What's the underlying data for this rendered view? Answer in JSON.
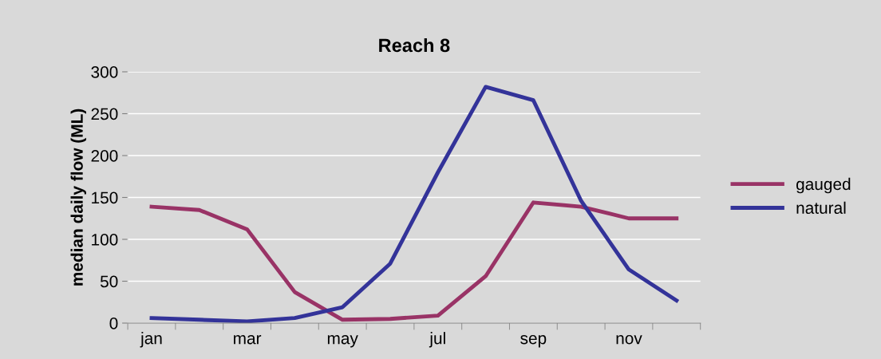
{
  "chart_data": {
    "type": "line",
    "title": "Reach 8",
    "ylabel": "median daily flow (ML)",
    "categories": [
      "jan",
      null,
      "mar",
      null,
      "may",
      null,
      "jul",
      null,
      "sep",
      null,
      "nov",
      null
    ],
    "series": [
      {
        "name": "gauged",
        "color": "#993366",
        "values": [
          139,
          135,
          112,
          37,
          4,
          5,
          9,
          56,
          144,
          139,
          125,
          125
        ]
      },
      {
        "name": "natural",
        "color": "#333399",
        "values": [
          6,
          4,
          2,
          6,
          19,
          71,
          180,
          282,
          266,
          146,
          64,
          27
        ]
      }
    ],
    "ylim": [
      0,
      300
    ],
    "yticks": [
      0,
      50,
      100,
      150,
      200,
      250,
      300
    ],
    "grid": "y",
    "legend": "right",
    "marker": "none",
    "line_style": "solid"
  }
}
